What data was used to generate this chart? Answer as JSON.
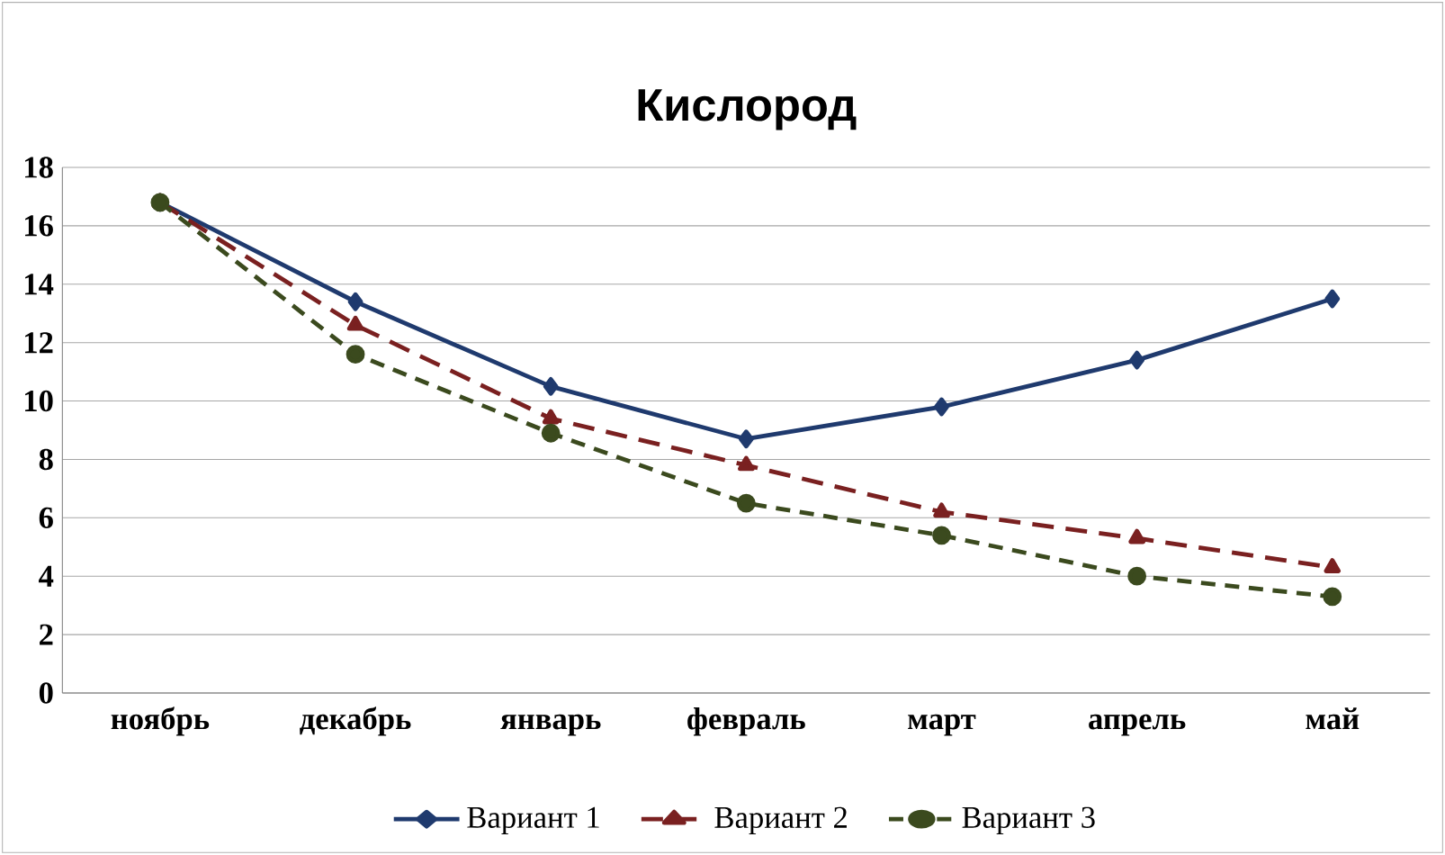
{
  "chart_data": {
    "type": "line",
    "title": "Кислород",
    "categories": [
      "ноябрь",
      "декабрь",
      "январь",
      "февраль",
      "март",
      "апрель",
      "май"
    ],
    "series": [
      {
        "name": "Вариант 1",
        "color": "#1f3a6e",
        "marker": "diamond",
        "line_style": "solid",
        "values": [
          16.8,
          13.4,
          10.5,
          8.7,
          9.8,
          11.4,
          13.5
        ]
      },
      {
        "name": "Вариант 2",
        "color": "#7a2020",
        "marker": "triangle",
        "line_style": "dashed",
        "values": [
          16.8,
          12.6,
          9.4,
          7.8,
          6.2,
          5.3,
          4.3
        ]
      },
      {
        "name": "Вариант 3",
        "color": "#3b4a1e",
        "marker": "circle",
        "line_style": "dashed",
        "values": [
          16.8,
          11.6,
          8.9,
          6.5,
          5.4,
          4.0,
          3.3
        ]
      }
    ],
    "ylim": [
      0,
      18
    ],
    "yticks": [
      0,
      2,
      4,
      6,
      8,
      10,
      12,
      14,
      16,
      18
    ],
    "grid": "y",
    "legend": "bottom"
  }
}
